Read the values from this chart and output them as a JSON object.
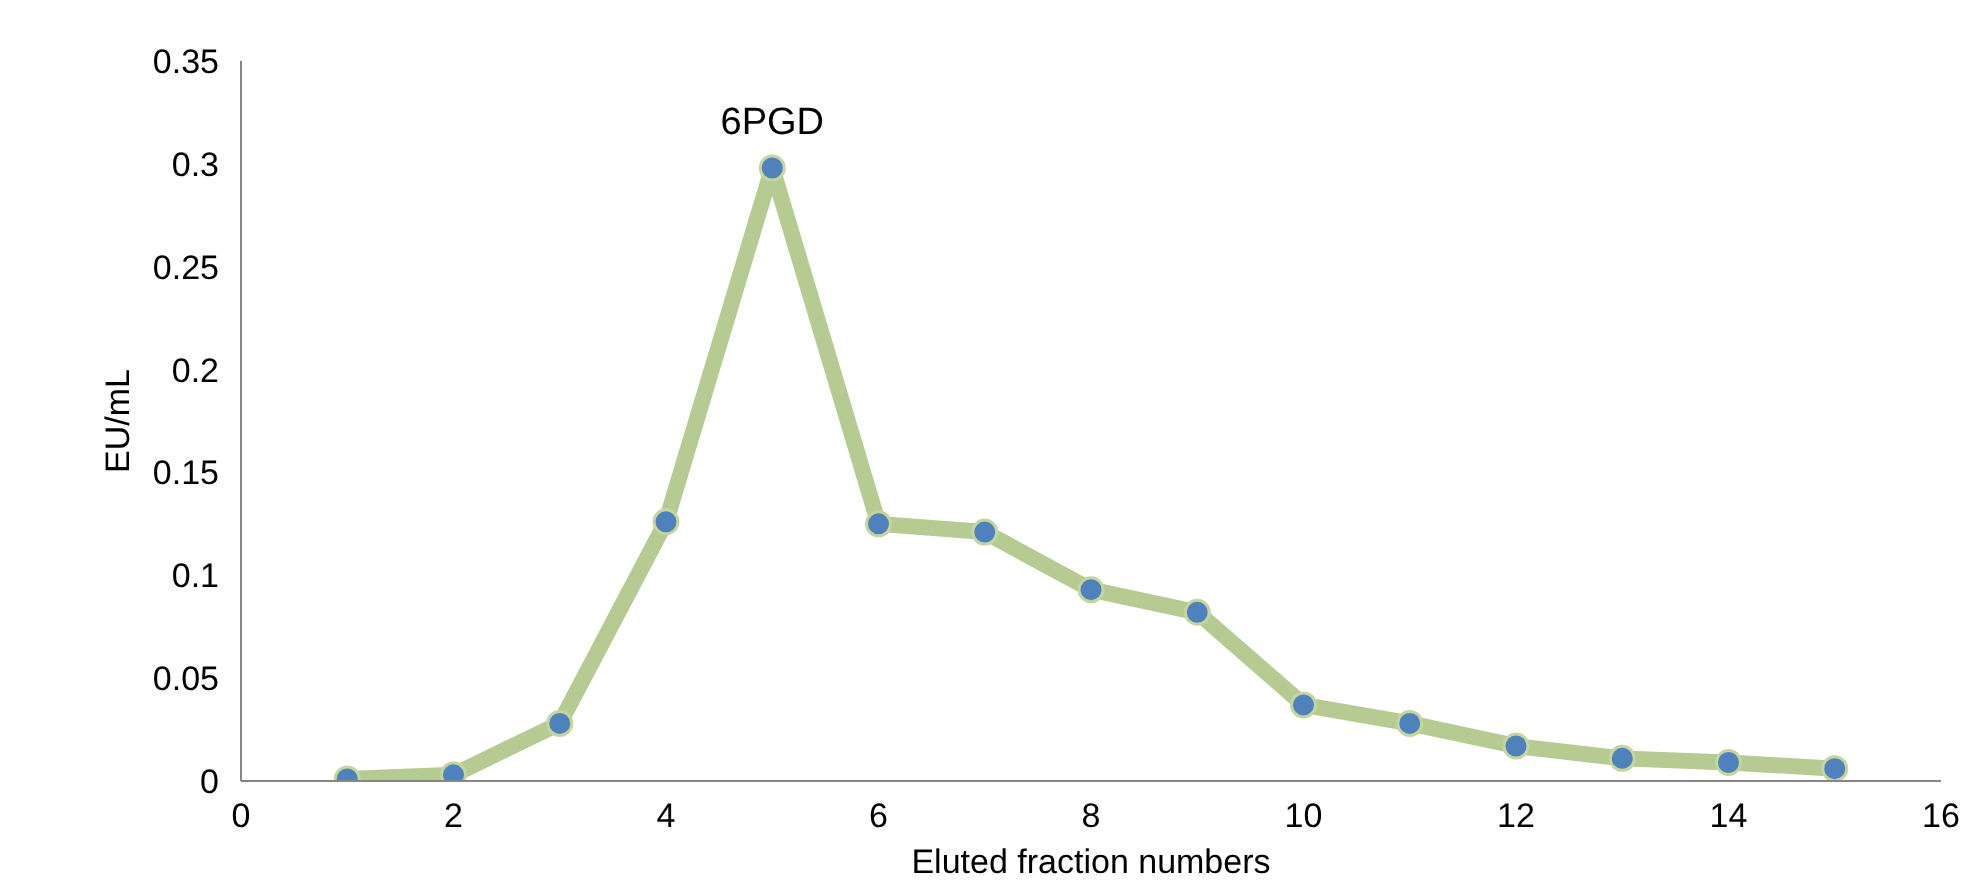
{
  "chart_data": {
    "type": "line",
    "xlabel": "Eluted fraction numbers",
    "ylabel": "EU/mL",
    "x": [
      1,
      2,
      3,
      4,
      5,
      6,
      7,
      8,
      9,
      10,
      11,
      12,
      13,
      14,
      15
    ],
    "series": [
      {
        "color": "#b5cb92",
        "values": [
          0.001,
          0.003,
          0.028,
          0.126,
          0.298,
          0.125,
          0.121,
          0.093,
          0.082,
          0.037,
          0.028,
          0.017,
          0.011,
          0.009,
          0.006
        ]
      }
    ],
    "marker": "circle",
    "line_style": "solid",
    "xlim": [
      0,
      16
    ],
    "xticks": [
      0,
      2,
      4,
      6,
      8,
      10,
      12,
      14,
      16
    ],
    "ylim": [
      0,
      0.35
    ],
    "yticks": [
      0,
      0.05,
      0.1,
      0.15,
      0.2,
      0.25,
      0.3,
      0.35
    ],
    "grid": false,
    "annotations": [
      {
        "text": "6PGD",
        "x": 5,
        "y": 0.298
      }
    ]
  }
}
